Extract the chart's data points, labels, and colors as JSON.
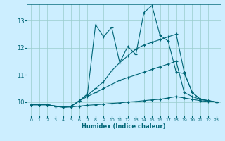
{
  "xlabel": "Humidex (Indice chaleur)",
  "bg_color": "#cceeff",
  "line_color": "#006677",
  "grid_color": "#99cccc",
  "xlim": [
    -0.5,
    23.5
  ],
  "ylim": [
    9.5,
    13.6
  ],
  "yticks": [
    10,
    11,
    12,
    13
  ],
  "xticks": [
    0,
    1,
    2,
    3,
    4,
    5,
    6,
    7,
    8,
    9,
    10,
    11,
    12,
    13,
    14,
    15,
    16,
    17,
    18,
    19,
    20,
    21,
    22,
    23
  ],
  "series": {
    "l1_x": [
      0,
      1,
      2,
      3,
      4,
      5,
      6,
      7,
      8,
      9,
      10,
      11,
      12,
      13,
      14,
      15,
      16,
      17,
      18,
      19,
      20,
      21,
      22,
      23
    ],
    "l1_y": [
      9.9,
      9.9,
      9.9,
      9.85,
      9.8,
      9.82,
      9.85,
      9.88,
      9.9,
      9.92,
      9.95,
      9.97,
      10.0,
      10.02,
      10.05,
      10.08,
      10.1,
      10.15,
      10.2,
      10.15,
      10.1,
      10.05,
      10.02,
      10.0
    ],
    "l2_x": [
      0,
      1,
      2,
      3,
      4,
      5,
      6,
      7,
      8,
      9,
      10,
      11,
      12,
      13,
      14,
      15,
      16,
      17,
      18,
      19,
      20,
      21,
      22,
      23
    ],
    "l2_y": [
      9.9,
      9.9,
      9.9,
      9.85,
      9.82,
      9.85,
      10.05,
      10.2,
      10.35,
      10.5,
      10.65,
      10.8,
      10.9,
      11.0,
      11.1,
      11.2,
      11.3,
      11.4,
      11.5,
      10.35,
      10.2,
      10.1,
      10.05,
      10.0
    ],
    "l3_x": [
      0,
      1,
      2,
      3,
      4,
      5,
      6,
      7,
      8,
      9,
      10,
      11,
      12,
      13,
      14,
      15,
      16,
      17,
      18,
      19,
      20,
      21,
      22,
      23
    ],
    "l3_y": [
      9.9,
      9.9,
      9.9,
      9.85,
      9.82,
      9.85,
      10.05,
      10.25,
      10.5,
      10.75,
      11.15,
      11.45,
      11.7,
      11.95,
      12.1,
      12.2,
      12.3,
      12.4,
      12.5,
      11.1,
      10.35,
      10.1,
      10.05,
      10.0
    ],
    "l4_x": [
      0,
      1,
      2,
      3,
      4,
      5,
      6,
      7,
      8,
      9,
      10,
      11,
      12,
      13,
      14,
      15,
      16,
      17,
      18,
      19,
      20,
      21,
      22,
      23
    ],
    "l4_y": [
      9.9,
      9.9,
      9.9,
      9.85,
      9.82,
      9.85,
      10.05,
      10.3,
      12.85,
      12.4,
      12.75,
      11.45,
      12.05,
      11.75,
      13.3,
      13.55,
      12.45,
      12.25,
      11.1,
      11.05,
      10.35,
      10.1,
      10.05,
      10.0
    ]
  }
}
